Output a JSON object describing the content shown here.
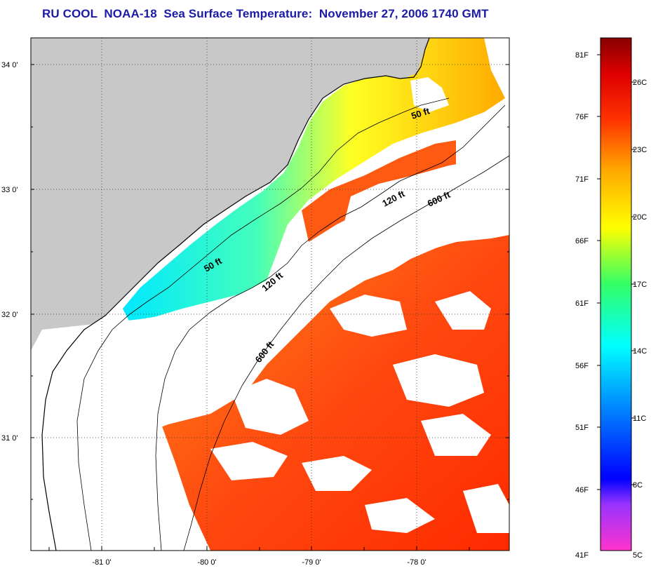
{
  "title": "RU COOL  NOAA-18  Sea Surface Temperature:  November 27, 2006 1740 GMT",
  "map": {
    "lat_labels": [
      "34 0'",
      "33 0'",
      "32 0'",
      "31 0'"
    ],
    "lon_labels": [
      "-81 0'",
      "-80 0'",
      "-79 0'",
      "-78 0'"
    ],
    "contour_labels": [
      "50 ft",
      "120 ft",
      "600 ft",
      "50 ft",
      "120 ft",
      "600 ft"
    ],
    "colors": {
      "land": "#c8c8c8",
      "cloud": "#ffffff",
      "coast": "#000000"
    }
  },
  "colorbar": {
    "fahrenheit_labels": [
      "81F",
      "76F",
      "71F",
      "66F",
      "61F",
      "56F",
      "51F",
      "46F",
      "41F"
    ],
    "celsius_labels": [
      "26C",
      "23C",
      "20C",
      "17C",
      "14C",
      "11C",
      "8C",
      "5C"
    ],
    "colors": [
      "#ff33cc",
      "#9933ff",
      "#0000ff",
      "#0066ff",
      "#00ffff",
      "#33ff66",
      "#ffff00",
      "#ffaa00",
      "#ff4400",
      "#dd0000",
      "#880000"
    ]
  }
}
